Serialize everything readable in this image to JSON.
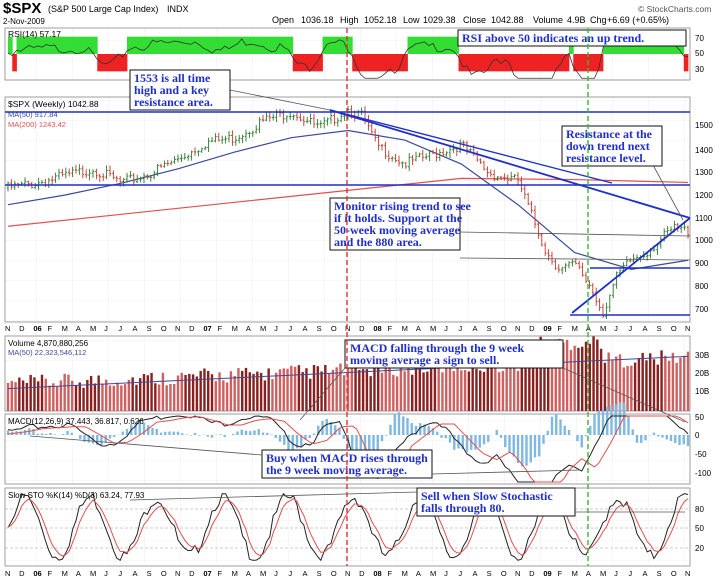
{
  "header": {
    "symbol": "$SPX",
    "name": "(S&P 500 Large Cap Index)",
    "exchange": "INDX",
    "date": "2-Nov-2009",
    "brand": "© StockCharts.com",
    "open_label": "Open",
    "open": "1036.18",
    "high_label": "High",
    "high": "1052.18",
    "low_label": "Low",
    "low": "1029.38",
    "close_label": "Close",
    "close": "1042.88",
    "volume_label": "Volume",
    "volume": "4.9B",
    "chg_label": "Chg",
    "chg": "+6.69 (+0.65%)"
  },
  "colors": {
    "up": "#2b7a2b",
    "down": "#c0392b",
    "annotation": "#1f2fcc",
    "rsi_green": "#33dd33",
    "rsi_red": "#ee2222",
    "ma50": "#3c4a9c",
    "ma200": "#e05050",
    "vline_red": "#e03030",
    "vline_green": "#33bb33"
  },
  "annotations": {
    "rsi_note": "RSI above 50 indicates an up trend.",
    "ath_note_1": "1553 is all time",
    "ath_note_2": "high and a key",
    "ath_note_3": "resistance area.",
    "res_note_1": "Resistance at the",
    "res_note_2": "down trend next",
    "res_note_3": "resistance level.",
    "mon_note_1": "Monitor rising trend to see",
    "mon_note_2": "if it holds. Support at the",
    "mon_note_3": "50-week moving average",
    "mon_note_4": "and the 880 area.",
    "macd_sell_1": "MACD falling through the 9 week",
    "macd_sell_2": "moving average a sign to sell.",
    "macd_buy_1": "Buy when MACD rises through",
    "macd_buy_2": "the 9 week moving average.",
    "sto_sell_1": "Sell when Slow Stochastic",
    "sto_sell_2": "falls through 80."
  },
  "chart_data": [
    {
      "type": "bar",
      "panel": "rsi",
      "title": "RSI(14) 57.17",
      "yticks": [
        30,
        50,
        70
      ],
      "note": "RSI(14) oscillator with green (above 50) and red (below 50) bands"
    },
    {
      "type": "line",
      "panel": "price",
      "title": "$SPX (Weekly) 1042.88",
      "legend": [
        "MA(50) 917.84",
        "MA(200) 1243.42"
      ],
      "yticks": [
        700,
        800,
        900,
        1000,
        1100,
        1200,
        1300,
        1400,
        1500
      ],
      "ylim": [
        660,
        1600
      ],
      "x_labels": [
        "N",
        "D",
        "06",
        "F",
        "M",
        "A",
        "M",
        "J",
        "J",
        "A",
        "S",
        "O",
        "N",
        "D",
        "07",
        "F",
        "M",
        "A",
        "M",
        "J",
        "J",
        "A",
        "S",
        "O",
        "N",
        "D",
        "08",
        "F",
        "M",
        "A",
        "M",
        "J",
        "J",
        "A",
        "S",
        "O",
        "N",
        "D",
        "09",
        "F",
        "M",
        "A",
        "M",
        "J",
        "J",
        "A",
        "S",
        "O",
        "N"
      ],
      "series": [
        {
          "name": "MA(50) 917.84",
          "x": [
            0,
            4,
            8,
            12,
            16,
            20,
            24,
            28,
            32,
            36,
            40,
            44,
            48
          ],
          "values": [
            1150,
            1190,
            1240,
            1300,
            1370,
            1430,
            1460,
            1420,
            1320,
            1150,
            950,
            880,
            918
          ]
        },
        {
          "name": "MA(200) 1243.42",
          "x": [
            0,
            8,
            16,
            24,
            32,
            40,
            48
          ],
          "values": [
            1060,
            1110,
            1160,
            1210,
            1260,
            1255,
            1243
          ]
        }
      ],
      "price_path": [
        [
          0,
          1220
        ],
        [
          2,
          1240
        ],
        [
          4,
          1270
        ],
        [
          6,
          1300
        ],
        [
          8,
          1240
        ],
        [
          10,
          1280
        ],
        [
          12,
          1340
        ],
        [
          14,
          1410
        ],
        [
          16,
          1430
        ],
        [
          18,
          1500
        ],
        [
          20,
          1540
        ],
        [
          22,
          1470
        ],
        [
          24,
          1550
        ],
        [
          25,
          1520
        ],
        [
          26,
          1400
        ],
        [
          28,
          1320
        ],
        [
          30,
          1360
        ],
        [
          32,
          1400
        ],
        [
          34,
          1280
        ],
        [
          36,
          1250
        ],
        [
          37,
          1100
        ],
        [
          38,
          950
        ],
        [
          39,
          880
        ],
        [
          40,
          900
        ],
        [
          41,
          820
        ],
        [
          42,
          700
        ],
        [
          43,
          850
        ],
        [
          44,
          920
        ],
        [
          45,
          950
        ],
        [
          46,
          1000
        ],
        [
          47,
          1050
        ],
        [
          48,
          1042
        ]
      ],
      "levels": [
        {
          "name": "all time high",
          "y": 1553
        },
        {
          "name": "resistance",
          "y": 1250
        },
        {
          "name": "support",
          "y": 880
        },
        {
          "name": "low",
          "y": 680
        }
      ]
    },
    {
      "type": "bar",
      "panel": "volume",
      "title": "Volume 4,870,880,256",
      "legend": [
        "MA(50) 22,323,546,112"
      ],
      "yticks": [
        "10B",
        "20B",
        "30B"
      ]
    },
    {
      "type": "line",
      "panel": "macd",
      "title": "MACD(12,26,9) 37.443, 36.817, 0.626",
      "yticks": [
        -100,
        -50,
        0,
        50
      ]
    },
    {
      "type": "line",
      "panel": "stochastic",
      "title": "Slow STO %K(14) %D(3) 63.24, 77.93",
      "yticks": [
        20,
        50,
        80
      ]
    }
  ]
}
